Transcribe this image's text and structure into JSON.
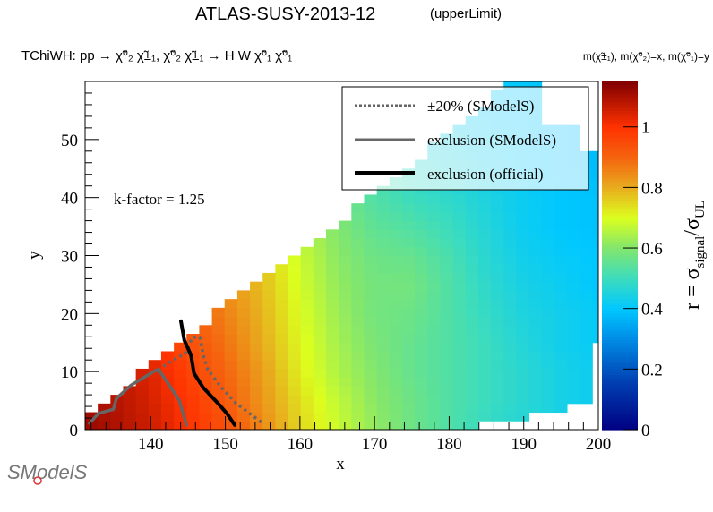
{
  "header": {
    "title": "ATLAS-SUSY-2013-12",
    "subtitle_tag": "(upperLimit)",
    "process": "TChiWH: pp  → χ̃⁰₂ χ̃±₁, χ̃⁰₂ χ̃±₁ → H W χ̃⁰₁ χ̃⁰₁",
    "mass_assignment": "m(χ̃±₁), m(χ̃⁰₂)=x, m(χ̃⁰₁)=y"
  },
  "annotation": "k-factor = 1.25",
  "logo": "SModelS",
  "chart_data": {
    "type": "heatmap",
    "title": "ATLAS-SUSY-2013-12 (upperLimit)",
    "xlabel": "x",
    "ylabel": "y",
    "zlabel": "r = σ_signal/σ_UL",
    "zlabel_parts": {
      "r": "r = σ",
      "sub1": "signal",
      "slash": "/σ",
      "sub2": "UL"
    },
    "xlim": [
      131.2,
      200
    ],
    "ylim": [
      0,
      60
    ],
    "zlim": [
      0,
      1.15
    ],
    "x_ticks": [
      140,
      150,
      160,
      170,
      180,
      190,
      200
    ],
    "y_ticks": [
      0,
      10,
      20,
      30,
      40,
      50
    ],
    "z_ticks": [
      0,
      0.2,
      0.4,
      0.6,
      0.8,
      1
    ],
    "cell_size": [
      1.7,
      1.5
    ],
    "grid_x": [
      130,
      135,
      140,
      145,
      150,
      155,
      160,
      165,
      170,
      175,
      180,
      185,
      190,
      195,
      200
    ],
    "grid_y": [
      0,
      5,
      10,
      15,
      20,
      25,
      30,
      35,
      40,
      45,
      50,
      55,
      60
    ],
    "grid_r": [
      [
        1.13,
        1.1,
        1.06,
        1.0,
        0.94,
        0.85,
        0.75,
        0.68,
        0.62,
        0.57,
        0.53,
        0.49,
        0.46,
        0.44,
        0.42
      ],
      [
        1.12,
        1.09,
        1.05,
        0.99,
        0.92,
        0.83,
        0.74,
        0.67,
        0.61,
        0.57,
        0.53,
        0.5,
        0.47,
        0.44,
        0.42
      ],
      [
        1.1,
        1.08,
        1.04,
        0.97,
        0.9,
        0.82,
        0.72,
        0.65,
        0.6,
        0.56,
        0.53,
        0.5,
        0.47,
        0.44,
        0.42
      ],
      [
        1.1,
        1.07,
        1.02,
        0.94,
        0.88,
        0.8,
        0.71,
        0.64,
        0.59,
        0.56,
        0.53,
        0.5,
        0.46,
        0.43,
        0.41
      ],
      [
        null,
        null,
        1.0,
        0.92,
        0.86,
        0.79,
        0.7,
        0.63,
        0.58,
        0.57,
        0.53,
        0.49,
        0.45,
        0.43,
        0.41
      ],
      [
        null,
        null,
        null,
        0.9,
        0.84,
        0.78,
        0.69,
        0.62,
        0.58,
        0.58,
        0.53,
        0.48,
        0.44,
        0.42,
        0.4
      ],
      [
        null,
        null,
        null,
        null,
        0.82,
        0.77,
        0.68,
        0.61,
        0.57,
        0.56,
        0.52,
        0.47,
        0.43,
        0.41,
        0.4
      ],
      [
        null,
        null,
        null,
        null,
        null,
        0.74,
        0.66,
        0.6,
        0.55,
        0.53,
        0.5,
        0.46,
        0.42,
        0.4,
        0.39
      ],
      [
        null,
        null,
        null,
        null,
        null,
        null,
        0.62,
        0.58,
        0.53,
        0.5,
        0.48,
        0.45,
        0.42,
        0.4,
        0.39
      ],
      [
        null,
        null,
        null,
        null,
        null,
        null,
        null,
        0.55,
        0.52,
        0.48,
        0.46,
        0.43,
        0.41,
        0.39,
        0.38
      ],
      [
        null,
        null,
        null,
        null,
        null,
        null,
        null,
        null,
        0.48,
        0.46,
        0.44,
        0.42,
        0.4,
        0.39,
        0.38
      ],
      [
        null,
        null,
        null,
        null,
        null,
        null,
        null,
        null,
        null,
        0.44,
        0.43,
        0.41,
        0.4,
        0.39,
        0.38
      ],
      [
        null,
        null,
        null,
        null,
        null,
        null,
        null,
        null,
        null,
        null,
        0.42,
        0.41,
        0.4,
        0.39,
        0.38
      ]
    ],
    "region_upper_boundary": [
      [
        131,
        1.5
      ],
      [
        140,
        11
      ],
      [
        150,
        21.5
      ],
      [
        160,
        31
      ],
      [
        170,
        40.5
      ],
      [
        180,
        51
      ],
      [
        188,
        59.5
      ],
      [
        192.5,
        59.5
      ],
      [
        193,
        52
      ],
      [
        197,
        52
      ],
      [
        197.5,
        48
      ],
      [
        200,
        48
      ]
    ],
    "region_lower_steps": [
      [
        184.5,
        1.5
      ],
      [
        191.5,
        3
      ],
      [
        195.5,
        4.5
      ],
      [
        198.5,
        15
      ]
    ],
    "series": [
      {
        "name": "±20% (SModelS)",
        "style": "dotted",
        "color": "#666666",
        "points": [
          [
            141.0,
            10.3
          ],
          [
            143.0,
            12.0
          ],
          [
            144.6,
            13.1
          ],
          [
            145.6,
            15.9
          ],
          [
            146.6,
            15.9
          ],
          [
            147.05,
            12.8
          ],
          [
            147.65,
            10.3
          ],
          [
            149.45,
            7.3
          ],
          [
            151.4,
            4.6
          ],
          [
            155.0,
            1.1
          ]
        ]
      },
      {
        "name": "exclusion (SModelS)",
        "style": "solid",
        "color": "#666666",
        "points": [
          [
            131.8,
            1.1
          ],
          [
            133.0,
            2.8
          ],
          [
            135.0,
            3.5
          ],
          [
            135.4,
            5.4
          ],
          [
            137.4,
            7.7
          ],
          [
            140.8,
            10.3
          ],
          [
            141.4,
            9.7
          ],
          [
            143.8,
            5.1
          ],
          [
            144.8,
            0.8
          ]
        ]
      },
      {
        "name": "exclusion (official)",
        "style": "solid",
        "color": "#000000",
        "points": [
          [
            144.05,
            18.7
          ],
          [
            144.5,
            15.4
          ],
          [
            145.4,
            12.8
          ],
          [
            145.8,
            9.7
          ],
          [
            147.0,
            7.3
          ],
          [
            148.97,
            4.6
          ],
          [
            150.2,
            2.8
          ],
          [
            151.25,
            0.8
          ]
        ]
      }
    ],
    "legend_placement": "top-right"
  }
}
